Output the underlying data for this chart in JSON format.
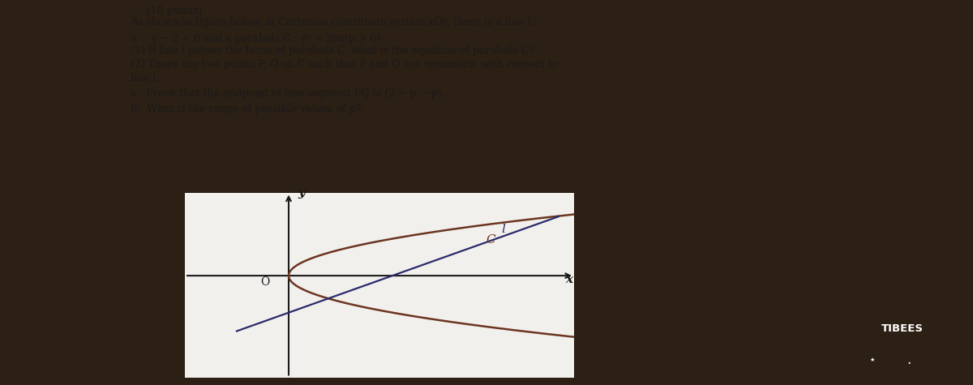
{
  "outer_bg": "#2c1f14",
  "paper_color": "#f2f0ed",
  "text_color": "#1a1a1a",
  "parabola_color": "#6b3520",
  "line_color": "#2a2a6a",
  "axis_color": "#1a1a1a",
  "tibees_bg": "#1a1208",
  "tibees_text": "#ffffff",
  "plot_xlim": [
    -2.0,
    5.5
  ],
  "plot_ylim": [
    -5.5,
    4.5
  ],
  "p_val": 1.0
}
